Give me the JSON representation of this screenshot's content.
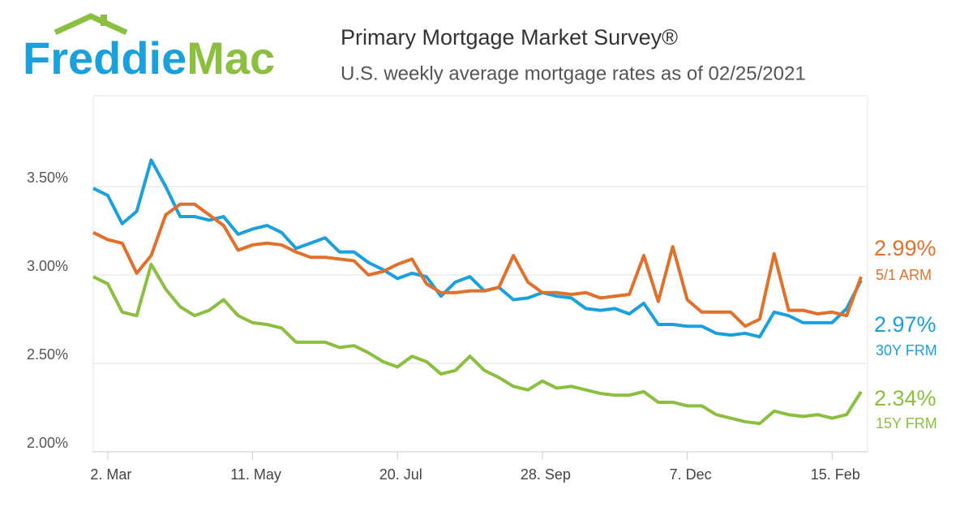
{
  "logo": {
    "first": "Freddie",
    "second": "Mac"
  },
  "chart_data": {
    "type": "line",
    "title": "Primary Mortgage Market Survey®",
    "subtitle": "U.S. weekly average mortgage rates as of 02/25/2021",
    "categories": [
      null,
      "2. Mar",
      null,
      null,
      null,
      null,
      null,
      null,
      null,
      null,
      null,
      "11. May",
      null,
      null,
      null,
      null,
      null,
      null,
      null,
      null,
      null,
      "20. Jul",
      null,
      null,
      null,
      null,
      null,
      null,
      null,
      null,
      null,
      "28. Sep",
      null,
      null,
      null,
      null,
      null,
      null,
      null,
      null,
      null,
      "7. Dec",
      null,
      null,
      null,
      null,
      null,
      null,
      null,
      null,
      null,
      "15. Feb",
      null,
      null
    ],
    "ylim": [
      2.0,
      4.0
    ],
    "yticks": [
      {
        "value": 2.0,
        "label": "2.00%"
      },
      {
        "value": 2.5,
        "label": "2.50%"
      },
      {
        "value": 3.0,
        "label": "3.00%"
      },
      {
        "value": 3.5,
        "label": "3.50%"
      }
    ],
    "grid": true,
    "series": [
      {
        "name": "5/1 ARM",
        "color": "#e0702a",
        "values": [
          3.24,
          3.2,
          3.18,
          3.01,
          3.11,
          3.34,
          3.4,
          3.4,
          3.34,
          3.28,
          3.14,
          3.17,
          3.18,
          3.17,
          3.13,
          3.1,
          3.1,
          3.09,
          3.08,
          3.0,
          3.02,
          3.06,
          3.09,
          2.95,
          2.9,
          2.9,
          2.91,
          2.91,
          2.93,
          3.11,
          2.96,
          2.9,
          2.9,
          2.89,
          2.9,
          2.87,
          2.88,
          2.89,
          3.11,
          2.85,
          3.16,
          2.86,
          2.79,
          2.79,
          2.79,
          2.71,
          2.75,
          3.12,
          2.8,
          2.8,
          2.78,
          2.79,
          2.77,
          2.99
        ],
        "value_labels": [
          null,
          null,
          null,
          null,
          null,
          null,
          null,
          null,
          null,
          null,
          null,
          null,
          null,
          null,
          null,
          null,
          null,
          null,
          null,
          null,
          null,
          null,
          null,
          null,
          null,
          null,
          null,
          null,
          null,
          null,
          null,
          null,
          null,
          null,
          null,
          null,
          null,
          null,
          null,
          null,
          null,
          null,
          null,
          null,
          null,
          null,
          null,
          null,
          null,
          null,
          null,
          null,
          null,
          "2.99%"
        ]
      },
      {
        "name": "30Y FRM",
        "color": "#1aa0dc",
        "values": [
          3.49,
          3.45,
          3.29,
          3.36,
          3.65,
          3.5,
          3.33,
          3.33,
          3.31,
          3.33,
          3.23,
          3.26,
          3.28,
          3.24,
          3.15,
          3.18,
          3.21,
          3.13,
          3.13,
          3.07,
          3.03,
          2.98,
          3.01,
          2.99,
          2.88,
          2.96,
          2.99,
          2.91,
          2.93,
          2.86,
          2.87,
          2.9,
          2.88,
          2.87,
          2.81,
          2.8,
          2.81,
          2.78,
          2.84,
          2.72,
          2.72,
          2.71,
          2.71,
          2.67,
          2.66,
          2.67,
          2.65,
          2.79,
          2.77,
          2.73,
          2.73,
          2.73,
          2.81,
          2.97
        ],
        "value_labels": [
          null,
          null,
          null,
          null,
          null,
          null,
          null,
          null,
          null,
          null,
          null,
          null,
          null,
          null,
          null,
          null,
          null,
          null,
          null,
          null,
          null,
          null,
          null,
          null,
          null,
          null,
          null,
          null,
          null,
          null,
          null,
          null,
          null,
          null,
          null,
          null,
          null,
          null,
          null,
          null,
          null,
          null,
          null,
          null,
          null,
          null,
          null,
          null,
          null,
          null,
          null,
          null,
          null,
          "2.97%"
        ]
      },
      {
        "name": "15Y FRM",
        "color": "#8bbf3f",
        "values": [
          2.99,
          2.95,
          2.79,
          2.77,
          3.06,
          2.92,
          2.82,
          2.77,
          2.8,
          2.86,
          2.77,
          2.73,
          2.72,
          2.7,
          2.62,
          2.62,
          2.62,
          2.59,
          2.6,
          2.56,
          2.51,
          2.48,
          2.54,
          2.51,
          2.44,
          2.46,
          2.54,
          2.46,
          2.42,
          2.37,
          2.35,
          2.4,
          2.36,
          2.37,
          2.35,
          2.33,
          2.32,
          2.32,
          2.34,
          2.28,
          2.28,
          2.26,
          2.26,
          2.21,
          2.19,
          2.17,
          2.16,
          2.23,
          2.21,
          2.2,
          2.21,
          2.19,
          2.21,
          2.34
        ],
        "value_labels": [
          null,
          null,
          null,
          null,
          null,
          null,
          null,
          null,
          null,
          null,
          null,
          null,
          null,
          null,
          null,
          null,
          null,
          null,
          null,
          null,
          null,
          null,
          null,
          null,
          null,
          null,
          null,
          null,
          null,
          null,
          null,
          null,
          null,
          null,
          null,
          null,
          null,
          null,
          null,
          null,
          null,
          null,
          null,
          null,
          null,
          null,
          null,
          null,
          null,
          null,
          null,
          null,
          null,
          "2.34%"
        ]
      }
    ]
  }
}
